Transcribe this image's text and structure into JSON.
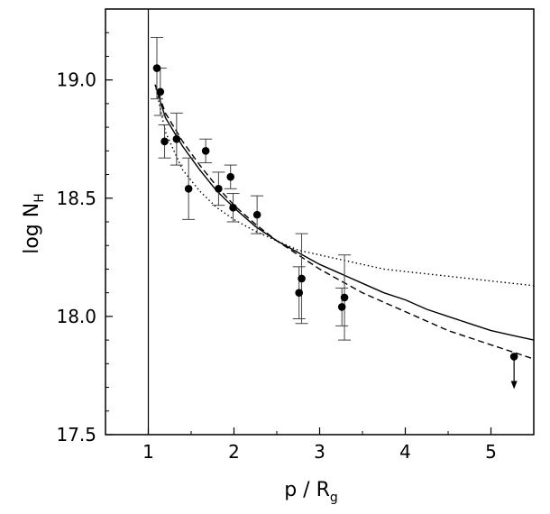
{
  "chart_data": {
    "type": "scatter",
    "xlabel": {
      "main": "p / R",
      "sub": "g"
    },
    "ylabel": {
      "main": "log N",
      "sub": "H"
    },
    "xlim": [
      0.5,
      5.5
    ],
    "ylim": [
      17.5,
      19.3
    ],
    "x_ticks": [
      1,
      2,
      3,
      4,
      5
    ],
    "x_tick_labels": [
      "1",
      "2",
      "3",
      "4",
      "5"
    ],
    "y_ticks": [
      17.5,
      18.0,
      18.5,
      19.0
    ],
    "y_tick_labels": [
      "17.5",
      "18.0",
      "18.5",
      "19.0"
    ],
    "reference_line_x": 1,
    "grid": false,
    "legend": "none",
    "points": [
      {
        "x": 1.1,
        "y": 19.05,
        "err": 0.13
      },
      {
        "x": 1.14,
        "y": 18.95,
        "err": 0.1
      },
      {
        "x": 1.19,
        "y": 18.74,
        "err": 0.07
      },
      {
        "x": 1.33,
        "y": 18.75,
        "err": 0.11
      },
      {
        "x": 1.47,
        "y": 18.54,
        "err": 0.13
      },
      {
        "x": 1.67,
        "y": 18.7,
        "err": 0.05
      },
      {
        "x": 1.82,
        "y": 18.54,
        "err": 0.07
      },
      {
        "x": 1.96,
        "y": 18.59,
        "err": 0.05
      },
      {
        "x": 1.99,
        "y": 18.46,
        "err": 0.06
      },
      {
        "x": 2.27,
        "y": 18.43,
        "err": 0.08
      },
      {
        "x": 2.76,
        "y": 18.1,
        "err": 0.11
      },
      {
        "x": 2.79,
        "y": 18.16,
        "err": 0.19
      },
      {
        "x": 3.26,
        "y": 18.04,
        "err": 0.08
      },
      {
        "x": 3.29,
        "y": 18.08,
        "err": 0.18
      }
    ],
    "upper_limits": [
      {
        "x": 5.27,
        "y": 17.83
      }
    ],
    "series": [
      {
        "style": "solid",
        "x": [
          1.08,
          1.2,
          1.4,
          1.6,
          1.8,
          2.0,
          2.25,
          2.5,
          2.75,
          3.0,
          3.25,
          3.5,
          3.75,
          4.0,
          4.25,
          4.5,
          4.75,
          5.0,
          5.25,
          5.5
        ],
        "y": [
          18.98,
          18.84,
          18.72,
          18.62,
          18.53,
          18.46,
          18.38,
          18.32,
          18.27,
          18.22,
          18.18,
          18.14,
          18.1,
          18.07,
          18.03,
          18.0,
          17.97,
          17.94,
          17.92,
          17.9
        ]
      },
      {
        "style": "dashed",
        "x": [
          1.08,
          1.2,
          1.4,
          1.6,
          1.8,
          2.0,
          2.25,
          2.5,
          2.75,
          3.0,
          3.25,
          3.5,
          3.75,
          4.0,
          4.25,
          4.5,
          4.75,
          5.0,
          5.25,
          5.5
        ],
        "y": [
          18.98,
          18.86,
          18.74,
          18.64,
          18.55,
          18.47,
          18.39,
          18.32,
          18.26,
          18.2,
          18.15,
          18.1,
          18.06,
          18.02,
          17.98,
          17.94,
          17.91,
          17.88,
          17.85,
          17.82
        ]
      },
      {
        "style": "dotted",
        "x": [
          1.08,
          1.2,
          1.4,
          1.6,
          1.8,
          2.0,
          2.25,
          2.5,
          2.75,
          3.0,
          3.25,
          3.5,
          3.75,
          4.0,
          4.25,
          4.5,
          4.75,
          5.0,
          5.25,
          5.5
        ],
        "y": [
          18.98,
          18.78,
          18.62,
          18.53,
          18.46,
          18.41,
          18.36,
          18.32,
          18.28,
          18.26,
          18.24,
          18.22,
          18.2,
          18.19,
          18.18,
          18.17,
          18.16,
          18.15,
          18.14,
          18.13
        ]
      }
    ]
  }
}
